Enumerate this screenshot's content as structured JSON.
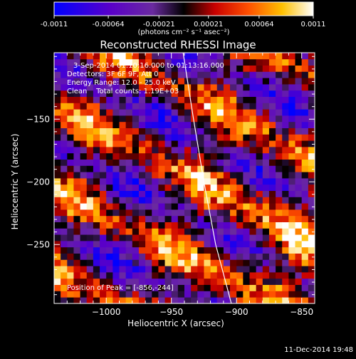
{
  "colorbar": {
    "tick_labels": [
      "-0.0011",
      "-0.00064",
      "-0.00021",
      "0.00021",
      "0.00064",
      "0.0011"
    ],
    "tick_values": [
      -0.0011,
      -0.00064,
      -0.00021,
      0.00021,
      0.00064,
      0.0011
    ],
    "range": [
      -0.0011,
      0.0011
    ],
    "unit_label": "(photons cm⁻² s⁻¹ asec⁻²)",
    "colors": [
      "#0000ff",
      "#5a00c8",
      "#6a2aa0",
      "#000000",
      "#c80000",
      "#ff5000",
      "#ffc000",
      "#ffffff"
    ]
  },
  "chart_data": {
    "type": "heatmap",
    "title": "Reconstructed RHESSI Image",
    "xlabel": "Heliocentric X (arcsec)",
    "ylabel": "Heliocentric Y (arcsec)",
    "xlim": [
      -1040,
      -840
    ],
    "ylim": [
      -297,
      -97
    ],
    "x_ticks": [
      -1000,
      -950,
      -900,
      -850
    ],
    "x_tick_labels": [
      "−1000",
      "−950",
      "−900",
      "−850"
    ],
    "y_ticks": [
      -150,
      -200,
      -250
    ],
    "y_tick_labels": [
      "−150",
      "−200",
      "−250"
    ],
    "grid": false,
    "pixel_size_arcsec": 5,
    "limb_curve": [
      [
        -941,
        -97
      ],
      [
        -933,
        -150
      ],
      [
        -925,
        -200
      ],
      [
        -916,
        -250
      ],
      [
        -904,
        -297
      ]
    ],
    "annotations": [
      "3-Sep-2014 01:10:16.000 to 01:13:16.000",
      "Detectors: 3F 6F 9F, Att 0",
      "Energy Range: 12.0 - 25.0 keV",
      "Clean    Total counts: 1.19E+03"
    ],
    "peak_label": "Position of Peak = [-856,-244]",
    "peak_position": [
      -856,
      -244
    ]
  },
  "footer": {
    "timestamp": "11-Dec-2014 19:48"
  }
}
